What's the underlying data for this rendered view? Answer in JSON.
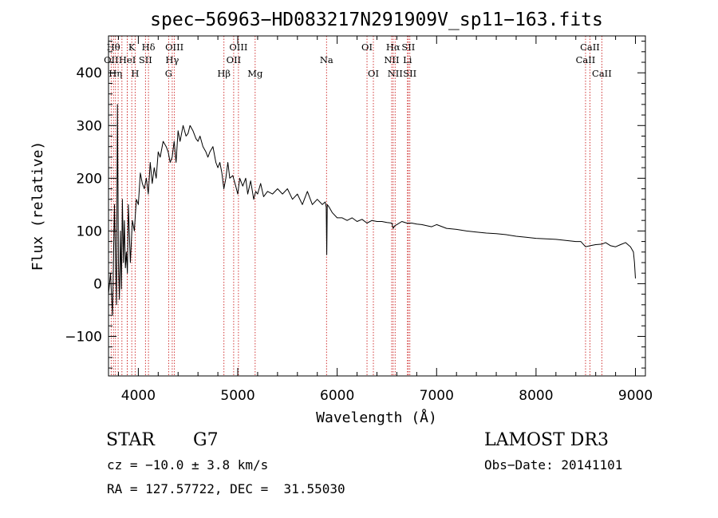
{
  "chart_data": {
    "type": "line",
    "title": "spec−56963−HD083217N291909V_sp11−163.fits",
    "xlabel": "Wavelength (Å)",
    "ylabel": "Flux (relative)",
    "xlim": [
      3700,
      9100
    ],
    "ylim": [
      -175,
      470
    ],
    "xticks": [
      4000,
      5000,
      6000,
      7000,
      8000,
      9000
    ],
    "xtick_labels": [
      "4000",
      "5000",
      "6000",
      "7000",
      "8000",
      "9000"
    ],
    "yticks": [
      -100,
      0,
      100,
      200,
      300,
      400
    ],
    "ytick_labels": [
      "−100",
      "0",
      "100",
      "200",
      "300",
      "400"
    ],
    "grid": false,
    "series": [
      {
        "x": [
          3700,
          3720,
          3740,
          3760,
          3780,
          3790,
          3800,
          3810,
          3820,
          3830,
          3840,
          3850,
          3860,
          3870,
          3880,
          3890,
          3900,
          3920,
          3940,
          3960,
          3980,
          4000,
          4020,
          4040,
          4060,
          4080,
          4100,
          4120,
          4140,
          4160,
          4180,
          4200,
          4220,
          4250,
          4280,
          4300,
          4320,
          4340,
          4360,
          4380,
          4400,
          4420,
          4450,
          4480,
          4500,
          4520,
          4550,
          4580,
          4600,
          4620,
          4650,
          4680,
          4700,
          4720,
          4750,
          4780,
          4800,
          4820,
          4840,
          4860,
          4880,
          4900,
          4920,
          4950,
          4980,
          5000,
          5020,
          5050,
          5080,
          5100,
          5130,
          5160,
          5180,
          5200,
          5230,
          5260,
          5300,
          5350,
          5400,
          5450,
          5500,
          5550,
          5600,
          5650,
          5700,
          5750,
          5800,
          5850,
          5880,
          5890,
          5895,
          5900,
          5920,
          5950,
          6000,
          6050,
          6100,
          6150,
          6200,
          6250,
          6300,
          6350,
          6400,
          6450,
          6500,
          6550,
          6563,
          6580,
          6600,
          6650,
          6700,
          6750,
          6800,
          6850,
          6900,
          6950,
          7000,
          7100,
          7200,
          7300,
          7400,
          7500,
          7600,
          7700,
          7800,
          7900,
          8000,
          8100,
          8200,
          8300,
          8400,
          8450,
          8498,
          8542,
          8600,
          8662,
          8700,
          8750,
          8800,
          8850,
          8900,
          8950,
          8980,
          8990,
          9000
        ],
        "y": [
          -20,
          20,
          -60,
          150,
          -40,
          340,
          40,
          -30,
          100,
          -10,
          160,
          40,
          120,
          30,
          60,
          20,
          150,
          40,
          120,
          100,
          160,
          150,
          210,
          190,
          180,
          200,
          170,
          230,
          190,
          220,
          200,
          250,
          240,
          270,
          260,
          250,
          230,
          240,
          270,
          230,
          290,
          270,
          300,
          280,
          285,
          300,
          290,
          275,
          270,
          280,
          260,
          250,
          240,
          250,
          260,
          230,
          220,
          230,
          210,
          180,
          200,
          230,
          200,
          205,
          185,
          170,
          200,
          185,
          200,
          170,
          195,
          160,
          175,
          170,
          190,
          165,
          175,
          170,
          180,
          170,
          180,
          160,
          170,
          150,
          175,
          150,
          160,
          150,
          155,
          145,
          55,
          150,
          145,
          135,
          125,
          125,
          120,
          125,
          118,
          122,
          115,
          120,
          118,
          118,
          116,
          115,
          105,
          110,
          112,
          118,
          115,
          115,
          113,
          112,
          110,
          108,
          112,
          105,
          103,
          100,
          98,
          96,
          95,
          93,
          90,
          88,
          86,
          85,
          84,
          82,
          80,
          80,
          70,
          72,
          74,
          75,
          78,
          72,
          70,
          74,
          78,
          70,
          60,
          40,
          10
        ]
      }
    ],
    "lines": [
      {
        "x": 3750,
        "text": "Hθ",
        "row": 1
      },
      {
        "x": 3727,
        "text": "OII",
        "row": 2
      },
      {
        "x": 3770,
        "text": "Hη",
        "row": 3
      },
      {
        "x": 3797,
        "text": "",
        "row": 0
      },
      {
        "x": 3835,
        "text": "",
        "row": 0
      },
      {
        "x": 3889,
        "text": "",
        "row": 0
      },
      {
        "x": 3934,
        "text": "K",
        "row": 1
      },
      {
        "x": 3889,
        "text": "HeI",
        "row": 2
      },
      {
        "x": 3968,
        "text": "H",
        "row": 3
      },
      {
        "x": 4072,
        "text": "SII",
        "row": 2
      },
      {
        "x": 4102,
        "text": "Hδ",
        "row": 1
      },
      {
        "x": 4305,
        "text": "G",
        "row": 3
      },
      {
        "x": 4341,
        "text": "Hγ",
        "row": 2
      },
      {
        "x": 4363,
        "text": "OIII",
        "row": 1
      },
      {
        "x": 4861,
        "text": "Hβ",
        "row": 3
      },
      {
        "x": 4959,
        "text": "OII",
        "row": 2
      },
      {
        "x": 5007,
        "text": "OIII",
        "row": 1
      },
      {
        "x": 5175,
        "text": "Mg",
        "row": 3
      },
      {
        "x": 5893,
        "text": "Na",
        "row": 2
      },
      {
        "x": 6300,
        "text": "OI",
        "row": 1
      },
      {
        "x": 6364,
        "text": "OI",
        "row": 3
      },
      {
        "x": 6548,
        "text": "NII",
        "row": 2
      },
      {
        "x": 6563,
        "text": "Hα",
        "row": 1
      },
      {
        "x": 6583,
        "text": "NII",
        "row": 3
      },
      {
        "x": 6707,
        "text": "Li",
        "row": 2
      },
      {
        "x": 6716,
        "text": "SII",
        "row": 1
      },
      {
        "x": 6731,
        "text": "SII",
        "row": 3
      },
      {
        "x": 8498,
        "text": "CaII",
        "row": 2
      },
      {
        "x": 8542,
        "text": "CaII",
        "row": 1
      },
      {
        "x": 8662,
        "text": "CaII",
        "row": 3
      }
    ],
    "colors": {
      "line_marker": "#cc2222",
      "spectrum": "#000000"
    }
  },
  "info": {
    "class": "STAR",
    "subclass": "G7",
    "survey": "LAMOST DR3",
    "cz": "cz = −10.0 ± 3.8 km/s",
    "obs_date": "Obs−Date: 20141101",
    "radec": "RA = 127.57722, DEC =  31.55030"
  }
}
